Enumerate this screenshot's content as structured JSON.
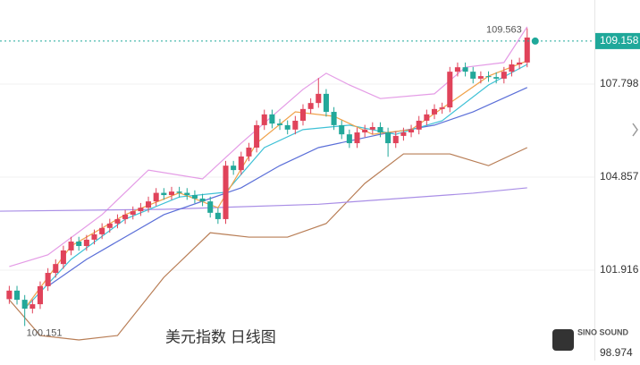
{
  "chart_data": {
    "type": "candlestick",
    "title": "美元指数 日线图",
    "up_color": "#e0435a",
    "down_color": "#22a89a",
    "open": [
      101.0,
      101.27,
      100.98,
      100.7,
      100.84,
      101.41,
      101.83,
      102.11,
      102.54,
      102.82,
      102.68,
      102.88,
      103.05,
      103.25,
      103.39,
      103.53,
      103.67,
      103.78,
      103.89,
      104.09,
      104.36,
      104.29,
      104.4,
      104.36,
      104.29,
      104.18,
      104.09,
      103.73,
      103.53,
      105.22,
      105.08,
      105.51,
      105.79,
      106.5,
      106.84,
      106.55,
      106.5,
      106.36,
      106.64,
      107.01,
      107.2,
      107.49,
      106.92,
      106.5,
      106.21,
      105.93,
      106.27,
      106.36,
      106.44,
      106.27,
      105.93,
      106.16,
      106.27,
      106.36,
      106.64,
      106.84,
      107.01,
      107.06,
      108.19,
      108.33,
      108.19,
      107.97,
      108.05,
      108.02,
      107.97,
      108.19,
      108.42,
      108.48
    ],
    "high": [
      101.42,
      101.42,
      101.13,
      100.99,
      101.56,
      101.98,
      102.26,
      102.69,
      102.97,
      102.97,
      103.03,
      103.2,
      103.4,
      103.54,
      103.68,
      103.82,
      103.93,
      104.04,
      104.24,
      104.51,
      104.51,
      104.55,
      104.55,
      104.51,
      104.44,
      104.33,
      104.24,
      103.88,
      105.37,
      105.37,
      105.66,
      105.94,
      106.65,
      106.99,
      106.99,
      106.7,
      106.65,
      106.79,
      107.16,
      107.35,
      107.99,
      107.64,
      107.07,
      106.65,
      106.36,
      106.42,
      106.51,
      106.59,
      106.59,
      106.42,
      106.31,
      106.42,
      106.51,
      106.79,
      106.99,
      107.16,
      107.21,
      108.34,
      108.48,
      108.48,
      108.34,
      108.2,
      108.2,
      108.17,
      108.34,
      108.57,
      108.63,
      109.563
    ],
    "low": [
      100.85,
      100.83,
      100.151,
      100.55,
      100.69,
      101.26,
      101.68,
      101.96,
      102.39,
      102.53,
      102.53,
      102.73,
      102.9,
      103.1,
      103.24,
      103.38,
      103.52,
      103.63,
      103.74,
      103.94,
      104.14,
      104.14,
      104.21,
      104.14,
      104.03,
      103.94,
      103.58,
      103.38,
      103.38,
      104.93,
      104.93,
      105.36,
      105.64,
      106.35,
      106.4,
      106.35,
      106.21,
      106.21,
      106.49,
      106.86,
      107.05,
      106.77,
      106.35,
      106.06,
      105.78,
      105.78,
      106.12,
      106.21,
      106.12,
      105.5,
      105.78,
      106.01,
      106.12,
      106.21,
      106.49,
      106.69,
      106.86,
      106.91,
      108.04,
      108.04,
      107.82,
      107.82,
      107.87,
      107.82,
      107.82,
      108.04,
      108.27,
      108.33
    ],
    "close": [
      101.27,
      100.98,
      100.7,
      100.84,
      101.41,
      101.83,
      102.11,
      102.54,
      102.82,
      102.68,
      102.88,
      103.05,
      103.25,
      103.39,
      103.53,
      103.67,
      103.78,
      103.89,
      104.09,
      104.36,
      104.29,
      104.4,
      104.36,
      104.29,
      104.18,
      104.09,
      103.73,
      103.53,
      105.22,
      105.08,
      105.51,
      105.79,
      106.5,
      106.84,
      106.55,
      106.5,
      106.36,
      106.64,
      107.01,
      107.2,
      107.49,
      106.92,
      106.5,
      106.21,
      105.93,
      106.27,
      106.36,
      106.44,
      106.27,
      105.93,
      106.16,
      106.27,
      106.36,
      106.64,
      106.84,
      107.01,
      107.06,
      108.19,
      108.33,
      108.19,
      107.97,
      108.05,
      108.02,
      107.97,
      108.19,
      108.42,
      108.48,
      109.27
    ],
    "series": [
      {
        "color": "#e49be6",
        "x": [
          0,
          5,
          12,
          18,
          25,
          30,
          38,
          41,
          44,
          48,
          55,
          59,
          64,
          67
        ],
        "values": [
          102.03,
          102.4,
          103.67,
          105.08,
          104.8,
          105.93,
          107.63,
          108.14,
          107.77,
          107.34,
          107.49,
          108.33,
          108.48,
          109.61
        ]
      },
      {
        "color": "#b87d55",
        "x": [
          0,
          4,
          9,
          14,
          20,
          26,
          31,
          36,
          41,
          46,
          51,
          57,
          62,
          67
        ],
        "values": [
          100.98,
          99.85,
          99.71,
          99.85,
          101.69,
          103.1,
          102.96,
          102.96,
          103.39,
          104.66,
          105.59,
          105.59,
          105.22,
          105.79
        ]
      },
      {
        "color": "#a98ee6",
        "x": [
          -1.2,
          20,
          40,
          60,
          67
        ],
        "values": [
          103.78,
          103.84,
          104.0,
          104.35,
          104.52
        ]
      },
      {
        "color": "#5b6fd8",
        "x": [
          5,
          10,
          20,
          30,
          35,
          40,
          48,
          55,
          60,
          67
        ],
        "values": [
          101.41,
          102.26,
          103.67,
          104.52,
          105.22,
          105.79,
          106.21,
          106.5,
          106.92,
          107.69
        ]
      },
      {
        "color": "#3fc1d6",
        "x": [
          2,
          8,
          15,
          22,
          28,
          33,
          38,
          44,
          50,
          56,
          62,
          67
        ],
        "values": [
          100.7,
          102.26,
          103.53,
          104.23,
          104.38,
          105.79,
          106.36,
          106.5,
          106.21,
          106.64,
          107.77,
          108.42
        ]
      },
      {
        "color": "#f0a24a",
        "x": [
          2,
          8,
          15,
          22,
          27,
          32,
          37,
          42,
          47,
          52,
          57,
          62,
          67
        ],
        "values": [
          100.7,
          102.68,
          103.67,
          104.36,
          103.89,
          105.93,
          106.92,
          106.78,
          106.21,
          106.36,
          107.2,
          108.05,
          108.53
        ]
      }
    ],
    "xlim": [
      -1.2,
      75.7
    ],
    "ylim": [
      99.06,
      110.456
    ],
    "yticks": [
      98.974,
      101.916,
      104.857,
      107.798
    ],
    "grid": true,
    "current_price": 109.158,
    "current_color": "#1fa89a",
    "high_label": 109.563,
    "low_label": 100.151,
    "watermark": "SINO SOUND"
  }
}
